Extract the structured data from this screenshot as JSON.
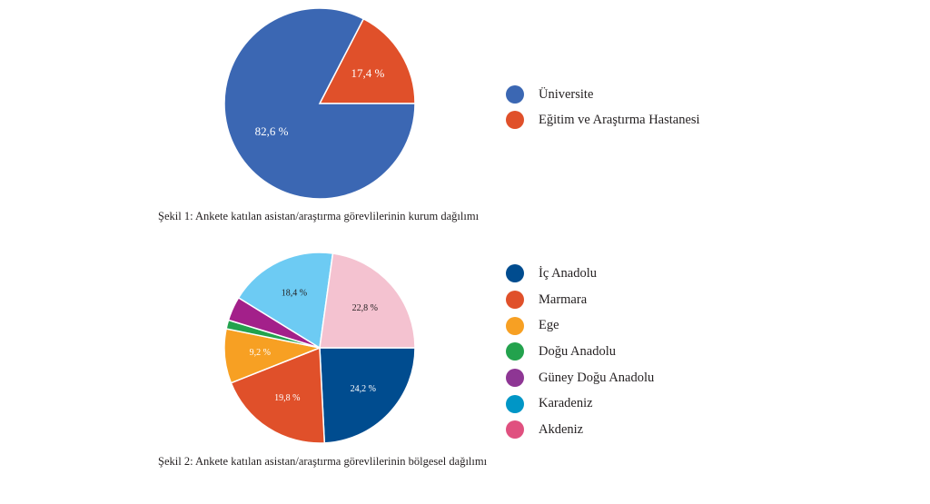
{
  "chart_data": [
    {
      "type": "pie",
      "categories": [
        "Üniversite",
        "Eğitim ve Araştırma Hastanesi"
      ],
      "values": [
        82.6,
        17.4
      ],
      "labels": [
        "82,6 %",
        "17,4 %"
      ],
      "colors": [
        "#3b67b3",
        "#e0502a"
      ],
      "caption": "Şekil 1: Ankete katılan asistan/araştırma görevlilerinin kurum dağılımı",
      "legend_position": "right"
    },
    {
      "type": "pie",
      "categories": [
        "İç Anadolu",
        "Marmara",
        "Ege",
        "Doğu Anadolu",
        "Güney Doğu Anadolu",
        "Karadeniz",
        "Akdeniz"
      ],
      "slices": [
        {
          "name": "İç Anadolu",
          "value": 24.2,
          "label": "24,2 %",
          "color": "#004c8f"
        },
        {
          "name": "Marmara",
          "value": 19.8,
          "label": "19,8 %",
          "color": "#e0502a"
        },
        {
          "name": "Ege",
          "value": 9.2,
          "label": "9,2 %",
          "color": "#f7a023"
        },
        {
          "name": "Doğu Anadolu",
          "value": 1.5,
          "label": "",
          "color": "#23a24d"
        },
        {
          "name": "Güney Doğu Anadolu",
          "value": 4.1,
          "label": "",
          "color": "#a3208a"
        },
        {
          "name": "Karadeniz",
          "value": 18.4,
          "label": "18,4 %",
          "color": "#6dcbf3"
        },
        {
          "name": "Akdeniz",
          "value": 22.8,
          "label": "22,8 %",
          "color": "#f4c2d0"
        }
      ],
      "legend_colors": [
        "#004c8f",
        "#e0502a",
        "#f7a023",
        "#23a24d",
        "#8e3694",
        "#0096c6",
        "#e0507f"
      ],
      "caption": "Şekil 2: Ankete katılan asistan/araştırma görevlilerinin bölgesel dağılımı",
      "legend_position": "right"
    }
  ]
}
